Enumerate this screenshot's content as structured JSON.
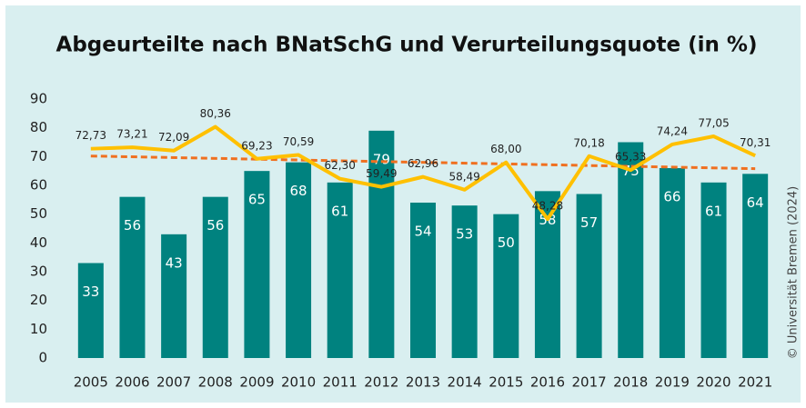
{
  "chart_data": {
    "type": "bar_line",
    "title": "Abgeurteilte nach BNatSchG und Verurteilungsquote (in %)",
    "credit": "© Universität Bremen (2024)",
    "categories": [
      "2005",
      "2006",
      "2007",
      "2008",
      "2009",
      "2010",
      "2011",
      "2012",
      "2013",
      "2014",
      "2015",
      "2016",
      "2017",
      "2018",
      "2019",
      "2020",
      "2021"
    ],
    "series": [
      {
        "type": "bar",
        "color": "#00827f",
        "values": [
          33,
          56,
          43,
          56,
          65,
          68,
          61,
          79,
          54,
          53,
          50,
          58,
          57,
          75,
          66,
          61,
          64
        ]
      },
      {
        "type": "line",
        "color": "#ffc000",
        "values": [
          72.73,
          73.21,
          72.09,
          80.36,
          69.23,
          70.59,
          62.3,
          59.49,
          62.96,
          58.49,
          68.0,
          48.28,
          70.18,
          65.33,
          74.24,
          77.05,
          70.31
        ],
        "value_labels": [
          "72,73",
          "73,21",
          "72,09",
          "80,36",
          "69,23",
          "70,59",
          "62,30",
          "59,49",
          "62,96",
          "58,49",
          "68,00",
          "48,28",
          "70,18",
          "65,33",
          "74,24",
          "77,05",
          "70,31"
        ]
      }
    ],
    "trendline": {
      "color": "#f07020",
      "values": [
        70.2,
        65.8
      ]
    },
    "ylim": [
      0,
      90
    ],
    "yticks": [
      0,
      10,
      20,
      30,
      40,
      50,
      60,
      70,
      80,
      90
    ],
    "grid": false
  }
}
